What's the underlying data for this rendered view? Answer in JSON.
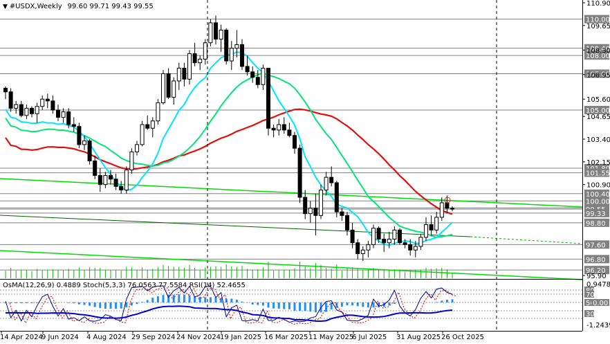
{
  "header": {
    "symbol": "#USDX,Weekly",
    "ohlc": "99.60 99.71 99.43 99.55"
  },
  "price_axis": {
    "plain_labels": [
      "110.90",
      "109.65",
      "108.30",
      "106.95",
      "105.60",
      "104.65",
      "103.40",
      "102.15",
      "100.90",
      "95.90"
    ],
    "boxed_labels": [
      {
        "text": "110.00",
        "color": "#808080"
      },
      {
        "text": "108.40",
        "color": "#808080"
      },
      {
        "text": "108.00",
        "color": "#808080"
      },
      {
        "text": "107.00",
        "color": "#808080"
      },
      {
        "text": "105.00",
        "color": "#808080"
      },
      {
        "text": "101.80",
        "color": "#808080"
      },
      {
        "text": "101.55",
        "color": "#808080"
      },
      {
        "text": "100.40",
        "color": "#808080"
      },
      {
        "text": "100.00",
        "color": "#808080"
      },
      {
        "text": "99.61",
        "color": "#808080"
      },
      {
        "text": "99.55",
        "color": "#808080"
      },
      {
        "text": "99.33",
        "color": "#808080"
      },
      {
        "text": "98.80",
        "color": "#808080"
      },
      {
        "text": "97.60",
        "color": "#808080"
      },
      {
        "text": "96.80",
        "color": "#808080"
      },
      {
        "text": "96.20",
        "color": "#808080"
      }
    ]
  },
  "indicator_header": "OsMA(12,26,9) 0.4889  Stoch(5,3,3) 76.0563 77.5584  RSI(14) 52.4655",
  "indicator_axis": {
    "top": "0.9478",
    "bottom": "-1.2439",
    "boxed": [
      "80",
      "70",
      "50",
      "0.00",
      "30"
    ]
  },
  "time_axis": [
    "14 Apr 2024",
    "9 Jun 2024",
    "4 Aug 2024",
    "29 Sep 2024",
    "24 Nov 2024",
    "19 Jan 2025",
    "16 Mar 2025",
    "11 May 2025",
    "6 Jul 2025",
    "31 Aug 2025",
    "26 Oct 2025"
  ],
  "colors": {
    "bull": "#000000",
    "bear": "#000000",
    "ma_fast": "#00e5ff",
    "ma_mid": "#00e676",
    "ma_slow": "#e01010",
    "trend": "#00dd00",
    "hist": "#1e90ff",
    "stoch_main": "#00008b",
    "stoch_signal": "#cc0000",
    "rsi": "#0000cd",
    "volume": "#00bb00"
  },
  "chart_data": {
    "type": "candlestick",
    "timeframe": "Weekly",
    "y_range": [
      95.5,
      111.2
    ],
    "candles": [
      [
        106.2,
        106.3,
        105.6,
        106.0
      ],
      [
        106.0,
        106.2,
        104.9,
        105.1
      ],
      [
        105.1,
        105.5,
        104.8,
        105.3
      ],
      [
        105.3,
        105.5,
        104.6,
        104.7
      ],
      [
        104.7,
        105.3,
        104.5,
        105.1
      ],
      [
        105.1,
        105.2,
        104.6,
        104.8
      ],
      [
        104.8,
        105.4,
        104.3,
        105.2
      ],
      [
        105.2,
        105.8,
        105.0,
        105.6
      ],
      [
        105.6,
        105.9,
        105.1,
        105.5
      ],
      [
        105.5,
        105.8,
        104.8,
        105.0
      ],
      [
        105.0,
        105.3,
        104.4,
        104.6
      ],
      [
        104.6,
        105.1,
        104.3,
        104.9
      ],
      [
        104.9,
        105.1,
        104.0,
        104.2
      ],
      [
        104.2,
        104.6,
        103.8,
        104.1
      ],
      [
        104.1,
        104.3,
        102.9,
        103.1
      ],
      [
        103.1,
        103.6,
        102.8,
        103.3
      ],
      [
        103.3,
        103.4,
        102.0,
        102.2
      ],
      [
        102.2,
        102.5,
        101.2,
        101.4
      ],
      [
        101.4,
        101.8,
        100.5,
        100.9
      ],
      [
        100.9,
        101.6,
        100.7,
        101.4
      ],
      [
        101.4,
        101.7,
        100.9,
        101.2
      ],
      [
        101.2,
        101.5,
        100.6,
        100.8
      ],
      [
        100.8,
        101.1,
        100.4,
        100.6
      ],
      [
        100.6,
        101.9,
        100.4,
        101.7
      ],
      [
        101.7,
        102.9,
        101.5,
        102.7
      ],
      [
        102.7,
        103.3,
        102.5,
        103.1
      ],
      [
        103.1,
        104.4,
        103.0,
        104.2
      ],
      [
        104.2,
        104.7,
        103.9,
        104.0
      ],
      [
        104.0,
        104.6,
        103.5,
        104.4
      ],
      [
        104.4,
        105.6,
        104.2,
        105.4
      ],
      [
        105.4,
        107.2,
        105.3,
        107.0
      ],
      [
        107.0,
        107.3,
        105.6,
        105.7
      ],
      [
        105.7,
        106.8,
        105.3,
        106.6
      ],
      [
        106.6,
        107.6,
        106.1,
        107.3
      ],
      [
        107.3,
        107.6,
        106.3,
        106.7
      ],
      [
        106.7,
        108.3,
        106.4,
        108.1
      ],
      [
        108.1,
        108.7,
        107.4,
        107.6
      ],
      [
        107.6,
        108.0,
        107.2,
        107.8
      ],
      [
        107.8,
        108.9,
        107.5,
        108.7
      ],
      [
        108.7,
        110.0,
        108.5,
        109.8
      ],
      [
        109.8,
        110.2,
        108.6,
        108.9
      ],
      [
        108.9,
        109.7,
        108.2,
        109.4
      ],
      [
        109.4,
        109.5,
        107.5,
        107.7
      ],
      [
        107.7,
        108.8,
        107.2,
        108.4
      ],
      [
        108.4,
        109.4,
        107.9,
        108.6
      ],
      [
        108.6,
        108.9,
        107.2,
        107.4
      ],
      [
        107.4,
        108.0,
        106.9,
        107.1
      ],
      [
        107.1,
        107.4,
        106.5,
        106.8
      ],
      [
        106.8,
        107.2,
        106.2,
        106.4
      ],
      [
        106.4,
        107.5,
        106.1,
        107.3
      ],
      [
        107.3,
        107.3,
        103.6,
        104.0
      ],
      [
        104.0,
        104.2,
        103.5,
        103.9
      ],
      [
        103.9,
        104.5,
        103.6,
        104.2
      ],
      [
        104.2,
        104.6,
        103.7,
        103.9
      ],
      [
        103.9,
        104.3,
        103.5,
        103.6
      ],
      [
        103.6,
        103.8,
        102.6,
        102.9
      ],
      [
        102.9,
        103.1,
        99.9,
        100.2
      ],
      [
        100.2,
        100.6,
        99.0,
        99.3
      ],
      [
        99.3,
        100.0,
        98.8,
        99.6
      ],
      [
        99.6,
        100.4,
        98.1,
        99.2
      ],
      [
        99.2,
        100.9,
        99.0,
        100.6
      ],
      [
        100.6,
        101.6,
        100.3,
        101.3
      ],
      [
        101.3,
        101.9,
        100.8,
        101.0
      ],
      [
        101.0,
        101.1,
        99.1,
        99.4
      ],
      [
        99.4,
        99.6,
        98.9,
        99.2
      ],
      [
        99.2,
        99.4,
        98.1,
        98.4
      ],
      [
        98.4,
        98.8,
        97.4,
        97.7
      ],
      [
        97.7,
        97.9,
        96.8,
        97.1
      ],
      [
        97.1,
        97.5,
        96.7,
        97.3
      ],
      [
        97.3,
        97.8,
        96.9,
        97.6
      ],
      [
        97.6,
        98.7,
        97.4,
        98.5
      ],
      [
        98.5,
        98.6,
        97.7,
        97.9
      ],
      [
        97.9,
        98.2,
        97.2,
        97.7
      ],
      [
        97.7,
        98.3,
        97.4,
        97.9
      ],
      [
        97.9,
        98.6,
        97.6,
        98.4
      ],
      [
        98.4,
        98.5,
        97.6,
        97.7
      ],
      [
        97.7,
        97.9,
        97.4,
        97.6
      ],
      [
        97.6,
        97.9,
        97.0,
        97.3
      ],
      [
        97.3,
        97.8,
        96.9,
        97.5
      ],
      [
        97.5,
        98.2,
        97.3,
        98.0
      ],
      [
        98.0,
        99.1,
        97.8,
        98.7
      ],
      [
        98.7,
        99.2,
        98.1,
        98.4
      ],
      [
        98.4,
        99.4,
        98.2,
        99.1
      ],
      [
        99.1,
        100.2,
        98.9,
        99.9
      ],
      [
        99.9,
        100.3,
        99.3,
        99.6
      ],
      [
        99.6,
        99.71,
        99.43,
        99.55
      ]
    ]
  }
}
